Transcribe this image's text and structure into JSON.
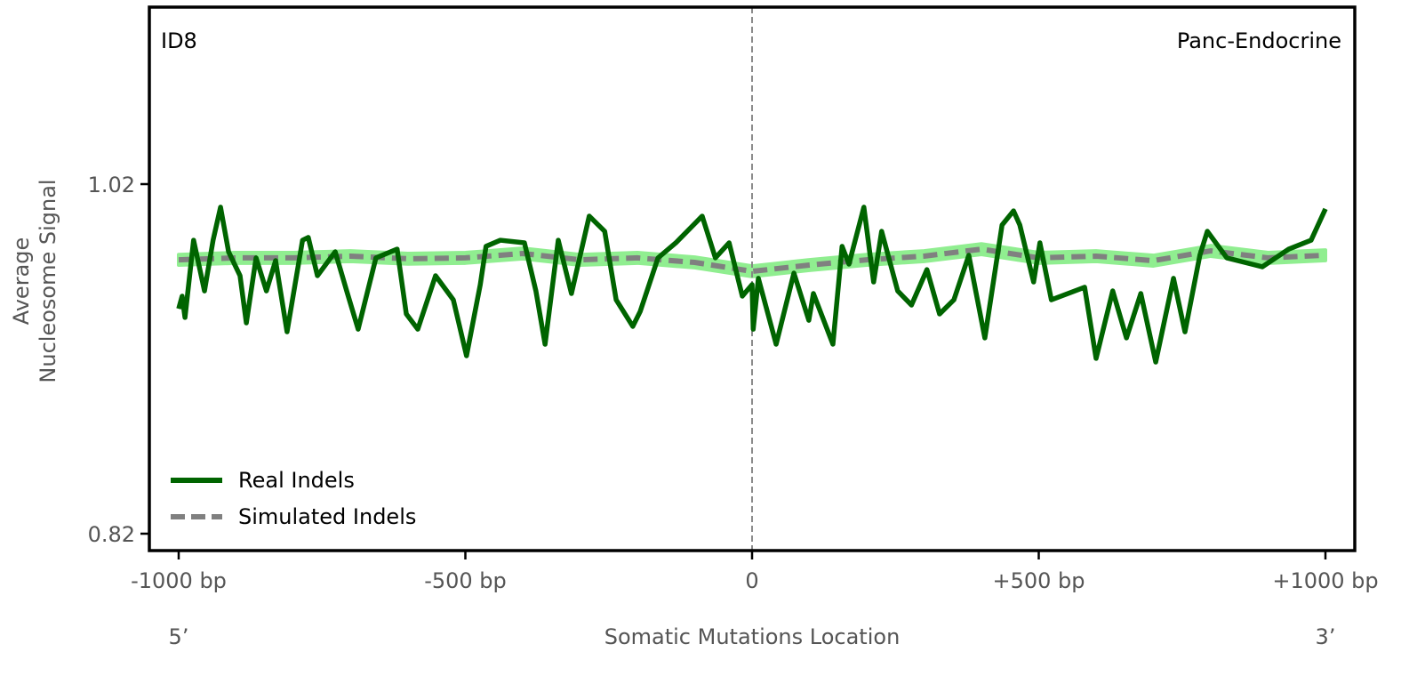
{
  "chart_data": {
    "type": "line",
    "panel_label": "ID8",
    "tissue_label": "Panc-Endocrine",
    "ylabel_line1": "Average",
    "ylabel_line2": "Nucleosome Signal",
    "xlabel": "Somatic Mutations Location",
    "x_end_labels": {
      "left": "5’",
      "right": "3’"
    },
    "xlim": [
      -1000,
      1000
    ],
    "ylim": [
      0.8103,
      1.121
    ],
    "xticks": [
      {
        "value": -1000,
        "label": "-1000 bp"
      },
      {
        "value": -500,
        "label": "-500 bp"
      },
      {
        "value": 0,
        "label": "0"
      },
      {
        "value": 500,
        "label": "+500 bp"
      },
      {
        "value": 1000,
        "label": "+1000 bp"
      }
    ],
    "yticks": [
      {
        "value": 1.02,
        "label": "1.02"
      },
      {
        "value": 0.82,
        "label": "0.82"
      }
    ],
    "vline_at": 0,
    "colors": {
      "real": "#006400",
      "simulated": "#808080",
      "band": "#90ee90",
      "vline": "#808080"
    },
    "legend": {
      "placement": "bottom-left",
      "entries": [
        "Real Indels",
        "Simulated Indels"
      ]
    },
    "series": [
      {
        "name": "Real Indels",
        "x": [
          -1000,
          -994,
          -989,
          -974,
          -955,
          -940,
          -927,
          -913,
          -893,
          -882,
          -865,
          -847,
          -831,
          -811,
          -784,
          -774,
          -758,
          -727,
          -707,
          -687,
          -656,
          -619,
          -603,
          -583,
          -552,
          -521,
          -498,
          -474,
          -464,
          -439,
          -397,
          -377,
          -361,
          -338,
          -315,
          -284,
          -257,
          -237,
          -208,
          -195,
          -164,
          -133,
          -87,
          -64,
          -40,
          -17,
          0,
          2,
          11,
          42,
          73,
          99,
          107,
          141,
          157,
          169,
          195,
          212,
          226,
          254,
          278,
          305,
          327,
          352,
          378,
          406,
          436,
          456,
          467,
          491,
          502,
          522,
          580,
          600,
          629,
          653,
          678,
          704,
          735,
          755,
          781,
          794,
          828,
          890,
          936,
          975,
          1000
        ],
        "y": [
          0.9487,
          0.9559,
          0.9437,
          0.9879,
          0.9589,
          0.9879,
          1.0068,
          0.9813,
          0.9676,
          0.9406,
          0.9778,
          0.9589,
          0.9762,
          0.9355,
          0.9879,
          0.9895,
          0.9676,
          0.9813,
          0.9589,
          0.937,
          0.9778,
          0.9828,
          0.9457,
          0.937,
          0.9676,
          0.9538,
          0.9218,
          0.9625,
          0.9844,
          0.9879,
          0.9864,
          0.9589,
          0.9284,
          0.9879,
          0.9574,
          1.0017,
          0.993,
          0.9538,
          0.9386,
          0.9472,
          0.9778,
          0.9864,
          1.0017,
          0.9778,
          0.9864,
          0.9559,
          0.9625,
          0.937,
          0.9661,
          0.9284,
          0.9691,
          0.9421,
          0.9574,
          0.9284,
          0.9844,
          0.9742,
          1.0068,
          0.964,
          0.993,
          0.9589,
          0.9508,
          0.9711,
          0.9457,
          0.9538,
          0.9793,
          0.932,
          0.9966,
          1.0047,
          0.9966,
          0.964,
          0.9864,
          0.9538,
          0.961,
          0.9203,
          0.9589,
          0.932,
          0.9574,
          0.9182,
          0.9661,
          0.9355,
          0.9793,
          0.993,
          0.9778,
          0.9727,
          0.9828,
          0.9879,
          1.0058
        ]
      },
      {
        "name": "Simulated Indels",
        "x": [
          -1000,
          -900,
          -800,
          -700,
          -600,
          -500,
          -400,
          -300,
          -200,
          -100,
          0,
          100,
          200,
          300,
          400,
          500,
          600,
          700,
          800,
          900,
          1000
        ],
        "y": [
          0.9767,
          0.9778,
          0.9778,
          0.9788,
          0.9773,
          0.9778,
          0.9803,
          0.9767,
          0.9778,
          0.9752,
          0.9701,
          0.9737,
          0.9767,
          0.9788,
          0.9828,
          0.9778,
          0.9788,
          0.9762,
          0.9818,
          0.9778,
          0.9793
        ],
        "band_halfwidth": 0.003
      }
    ]
  }
}
